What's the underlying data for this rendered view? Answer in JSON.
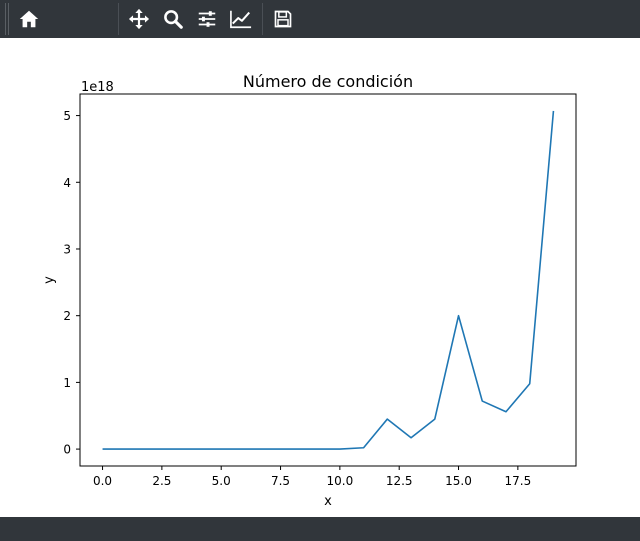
{
  "toolbar": {
    "buttons": [
      {
        "icon": "home-icon"
      },
      {
        "icon": "pan-icon"
      },
      {
        "icon": "zoom-icon"
      },
      {
        "icon": "subplots-icon"
      },
      {
        "icon": "customize-icon"
      },
      {
        "icon": "save-icon"
      }
    ],
    "background": "#31363b",
    "icon_color": "#ffffff"
  },
  "chart_data": {
    "type": "line",
    "title": "Número de condición",
    "xlabel": "x",
    "ylabel": "y",
    "offset_text": "1e18",
    "x": [
      0,
      1,
      2,
      3,
      4,
      5,
      6,
      7,
      8,
      9,
      10,
      11,
      12,
      13,
      14,
      15,
      16,
      17,
      18,
      19
    ],
    "series": [
      {
        "values": [
          0,
          0,
          0,
          0,
          0,
          0,
          0,
          0,
          0,
          0,
          0,
          0.02,
          0.45,
          0.17,
          0.45,
          2.0,
          0.72,
          0.56,
          0.98,
          5.07
        ],
        "color": "#1f77b4"
      }
    ],
    "xlim": [
      -0.95,
      19.95
    ],
    "ylim": [
      -0.2535,
      5.3235
    ],
    "x_ticks": [
      0,
      2.5,
      5,
      7.5,
      10,
      12.5,
      15,
      17.5
    ],
    "x_tick_labels": [
      "0.0",
      "2.5",
      "5.0",
      "7.5",
      "10.0",
      "12.5",
      "15.0",
      "17.5"
    ],
    "y_ticks": [
      0,
      1,
      2,
      3,
      4,
      5
    ],
    "y_tick_labels": [
      "0",
      "1",
      "2",
      "3",
      "4",
      "5"
    ],
    "grid": false,
    "legend": "none"
  }
}
